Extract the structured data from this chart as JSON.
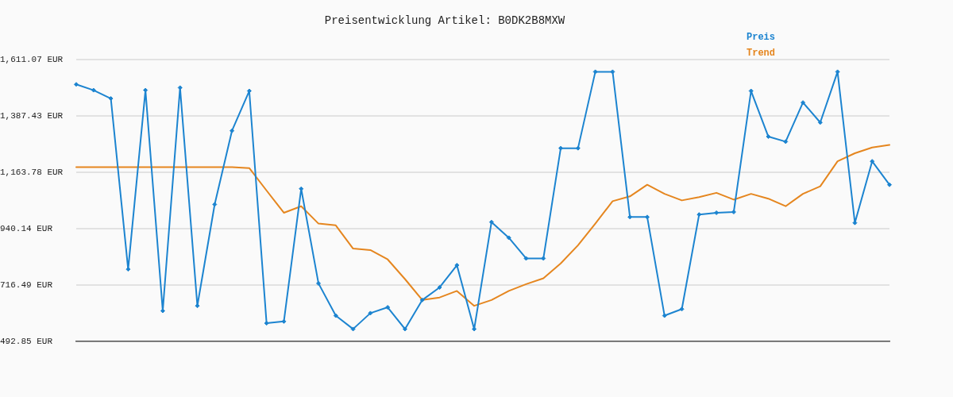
{
  "chart_data": {
    "type": "line",
    "title": "Preisentwicklung Artikel: B0DK2B8MXW",
    "categories": [
      null,
      null,
      null,
      null,
      null,
      null,
      null,
      null,
      null,
      null,
      null,
      null,
      null,
      null,
      null,
      null,
      null,
      null,
      null,
      null,
      null,
      null,
      null,
      null,
      null,
      null,
      null,
      null,
      null,
      null,
      null,
      null,
      null,
      null,
      null,
      null,
      null,
      null,
      null,
      null,
      null,
      null,
      null,
      null,
      null,
      null,
      null,
      null
    ],
    "series": [
      {
        "name": "Preis",
        "color": "#1c84d0",
        "marker": "diamond",
        "values": [
          1512,
          1489,
          1456,
          779,
          1489,
          614,
          1499,
          634,
          1036,
          1328,
          1486,
          565,
          572,
          1098,
          723,
          595,
          542,
          605,
          628,
          542,
          657,
          707,
          795,
          542,
          966,
          904,
          822,
          822,
          1259,
          1259,
          1562,
          1562,
          986,
          986,
          595,
          621,
          996,
          1003,
          1006,
          1486,
          1305,
          1285,
          1440,
          1361,
          1562,
          963,
          1207,
          1114
        ]
      },
      {
        "name": "Trend",
        "color": "#e5861f",
        "marker": "none",
        "values": [
          1184,
          1184,
          1184,
          1184,
          1184,
          1184,
          1184,
          1184,
          1184,
          1184,
          1180,
          1091,
          1003,
          1029,
          960,
          953,
          861,
          855,
          818,
          740,
          657,
          667,
          693,
          634,
          657,
          693,
          720,
          743,
          802,
          874,
          960,
          1049,
          1068,
          1114,
          1078,
          1052,
          1065,
          1082,
          1055,
          1078,
          1059,
          1029,
          1078,
          1108,
          1207,
          1239,
          1262,
          1272
        ]
      }
    ],
    "ylim": [
      492.85,
      1611.07
    ],
    "yticks": [
      {
        "value": 492.85,
        "label": "492.85 EUR"
      },
      {
        "value": 716.49,
        "label": "716.49 EUR"
      },
      {
        "value": 940.14,
        "label": "940.14 EUR"
      },
      {
        "value": 1163.78,
        "label": "1,163.78 EUR"
      },
      {
        "value": 1387.43,
        "label": "1,387.43 EUR"
      },
      {
        "value": 1611.07,
        "label": "1,611.07 EUR"
      }
    ],
    "grid": "y",
    "legend": "top right",
    "tick_labels": "y"
  }
}
